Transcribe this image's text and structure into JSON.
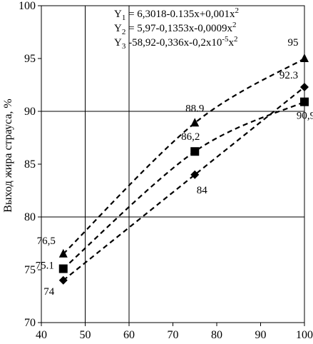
{
  "chart_data": {
    "type": "scatter",
    "title": "",
    "xlabel": "",
    "ylabel": "Выход жира страуса, %",
    "xlim": [
      40,
      100
    ],
    "ylim": [
      70,
      100
    ],
    "xticks": [
      "40",
      "50",
      "60",
      "70",
      "80",
      "90",
      "100"
    ],
    "yticks": [
      "70",
      "75",
      "80",
      "85",
      "90",
      "95",
      "100"
    ],
    "grid_x": [
      50,
      60
    ],
    "grid_y": [
      80,
      90,
      100
    ],
    "marker_color": "#000000",
    "equations": [
      {
        "prefix": "Y",
        "sub": "1",
        "body": " = 6,3018-0.135x+0,001x",
        "sup": "2"
      },
      {
        "prefix": "Y",
        "sub": "2",
        "body": " = 5,97-0,1353x-0,0009x",
        "sup": "2"
      },
      {
        "prefix": "Y",
        "sub": "3",
        "body": " -58,92-0,336x-0,2x10",
        "sup": "-5",
        "tail": "x",
        "sup2": "2"
      }
    ],
    "series": [
      {
        "marker": "triangle",
        "x": [
          45,
          75,
          100
        ],
        "y": [
          76.5,
          88.9,
          95
        ],
        "labels": [
          "76,5",
          "88.9",
          "95"
        ]
      },
      {
        "marker": "square",
        "x": [
          45,
          75,
          100
        ],
        "y": [
          75.1,
          86.2,
          90.9
        ],
        "labels": [
          "75.1",
          "86,2",
          "90,9"
        ]
      },
      {
        "marker": "diamond",
        "x": [
          45,
          75,
          100
        ],
        "y": [
          74,
          84,
          92.3
        ],
        "labels": [
          "74",
          "84",
          "92.3"
        ]
      }
    ]
  }
}
